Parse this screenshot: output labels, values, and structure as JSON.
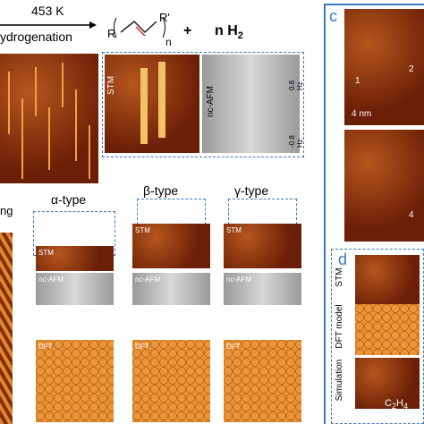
{
  "panel_b": {
    "temperature": "453 K",
    "process": "ydrogenation",
    "r": "R",
    "r_prime": "R'",
    "n": "n",
    "plus": "+",
    "hydrogen": "n H",
    "hydrogen_sub": "2",
    "stm_label": "STM",
    "afm_label": "nc-AFM",
    "afm_scale_top": "0.8 Hz",
    "afm_scale_bottom": "-0.8 Hz"
  },
  "left_label": "ng",
  "types": [
    {
      "label": "α-type",
      "rows": [
        "STM",
        "nc-AFM",
        "DFT"
      ]
    },
    {
      "label": "β-type",
      "rows": [
        "STM",
        "nc-AFM",
        "DFT"
      ]
    },
    {
      "label": "γ-type",
      "rows": [
        "STM",
        "nc-AFM",
        "DFT"
      ]
    }
  ],
  "panel_c": {
    "letter": "c",
    "markers": [
      "1",
      "2",
      "4"
    ],
    "scale": "4 nm"
  },
  "panel_d": {
    "letter": "d",
    "rows": [
      "STM",
      "DFT model",
      "Simulation"
    ],
    "molecule_c": "C",
    "molecule_c_sub": "2",
    "molecule_h": "H",
    "molecule_h_sub": "4"
  }
}
